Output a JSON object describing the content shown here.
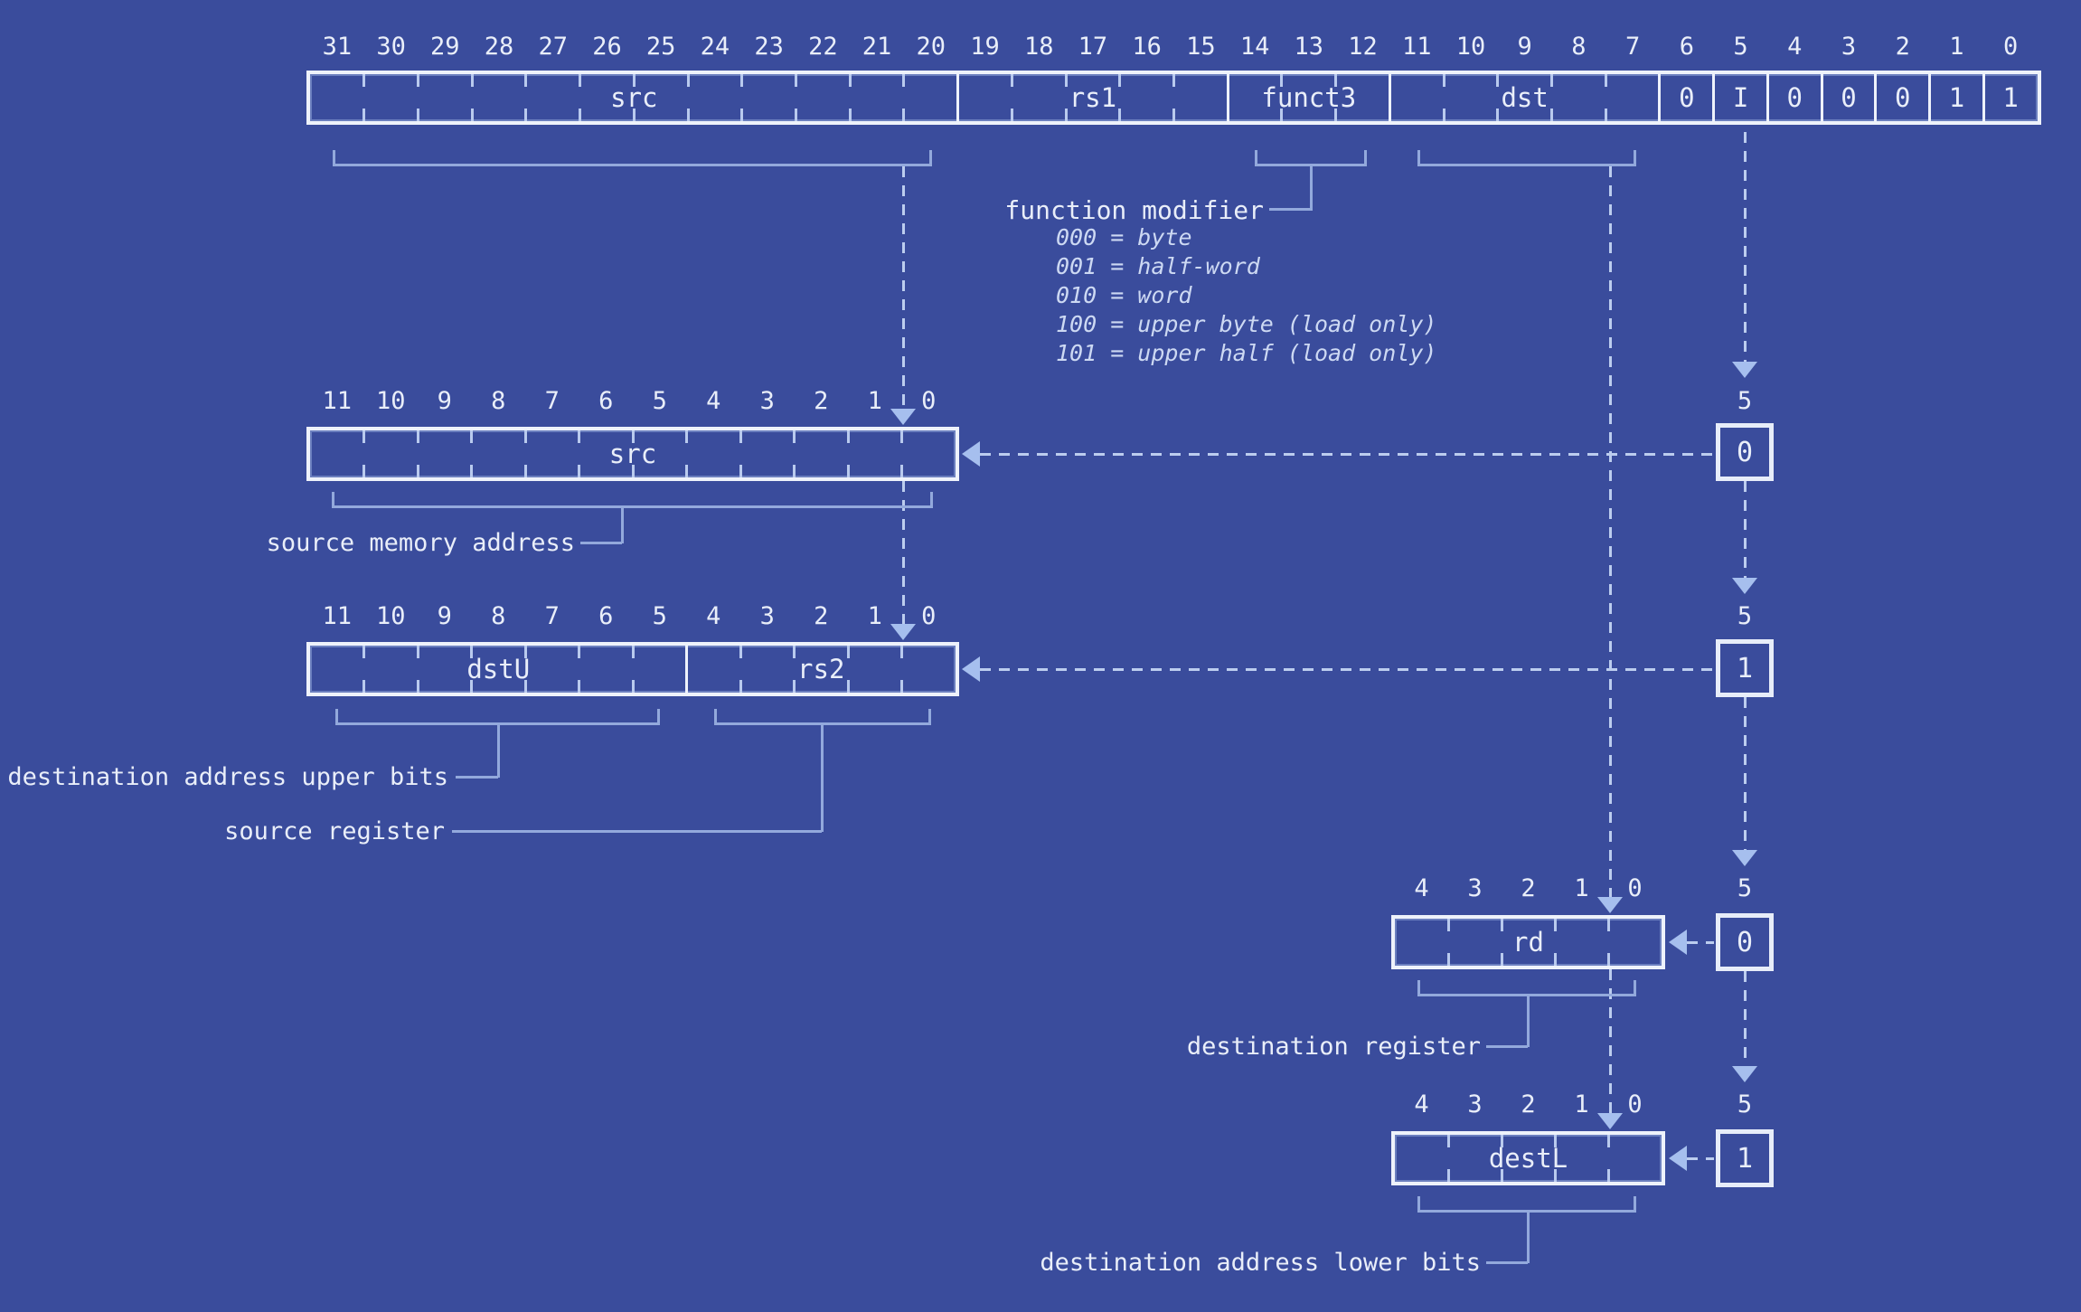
{
  "colors": {
    "background": "#3A4C9C",
    "line_white": "#EEF2FB",
    "tick_blue": "#B9CAEE",
    "brace_blue": "#93A9DC",
    "dash_blue": "#BCCDEF",
    "arrow_blue": "#A6BFEE",
    "text_white": "#E9EEF9",
    "text_italic_blue": "#CDD9F3"
  },
  "instruction": {
    "bit_numbers": [
      "31",
      "30",
      "29",
      "28",
      "27",
      "26",
      "25",
      "24",
      "23",
      "22",
      "21",
      "20",
      "19",
      "18",
      "17",
      "16",
      "15",
      "14",
      "13",
      "12",
      "11",
      "10",
      "9",
      "8",
      "7",
      "6",
      "5",
      "4",
      "3",
      "2",
      "1",
      "0"
    ],
    "fields": [
      {
        "label": "src",
        "bits": 12
      },
      {
        "label": "rs1",
        "bits": 5
      },
      {
        "label": "funct3",
        "bits": 3
      },
      {
        "label": "dst",
        "bits": 5
      },
      {
        "label": "0",
        "bits": 1
      },
      {
        "label": "I",
        "bits": 1
      },
      {
        "label": "0",
        "bits": 1
      },
      {
        "label": "0",
        "bits": 1
      },
      {
        "label": "0",
        "bits": 1
      },
      {
        "label": "1",
        "bits": 1
      },
      {
        "label": "1",
        "bits": 1
      }
    ]
  },
  "function_modifier": {
    "label": "function modifier",
    "options": [
      "000 = byte",
      "001 = half-word",
      "010 = word",
      "100 = upper byte (load only)",
      "101 = upper half (load only)"
    ]
  },
  "sub_registers": [
    {
      "id": "src-memory",
      "bit_numbers": [
        "11",
        "10",
        "9",
        "8",
        "7",
        "6",
        "5",
        "4",
        "3",
        "2",
        "1",
        "0"
      ],
      "fields": [
        {
          "label": "src",
          "bits": 12
        }
      ],
      "caption": "source memory address"
    },
    {
      "id": "dstu-rs2",
      "bit_numbers": [
        "11",
        "10",
        "9",
        "8",
        "7",
        "6",
        "5",
        "4",
        "3",
        "2",
        "1",
        "0"
      ],
      "fields": [
        {
          "label": "dstU",
          "bits": 7
        },
        {
          "label": "rs2",
          "bits": 5
        }
      ],
      "captions": [
        "destination address upper bits",
        "source register"
      ]
    },
    {
      "id": "rd",
      "bit_numbers": [
        "4",
        "3",
        "2",
        "1",
        "0"
      ],
      "fields": [
        {
          "label": "rd",
          "bits": 5
        }
      ],
      "caption": "destination register"
    },
    {
      "id": "destl",
      "bit_numbers": [
        "4",
        "3",
        "2",
        "1",
        "0"
      ],
      "fields": [
        {
          "label": "destL",
          "bits": 5
        }
      ],
      "caption": "destination address lower bits"
    }
  ],
  "shift_chain": {
    "width_labels": [
      "5",
      "5",
      "5",
      "5"
    ],
    "box_values": [
      "0",
      "1",
      "0",
      "1"
    ]
  }
}
